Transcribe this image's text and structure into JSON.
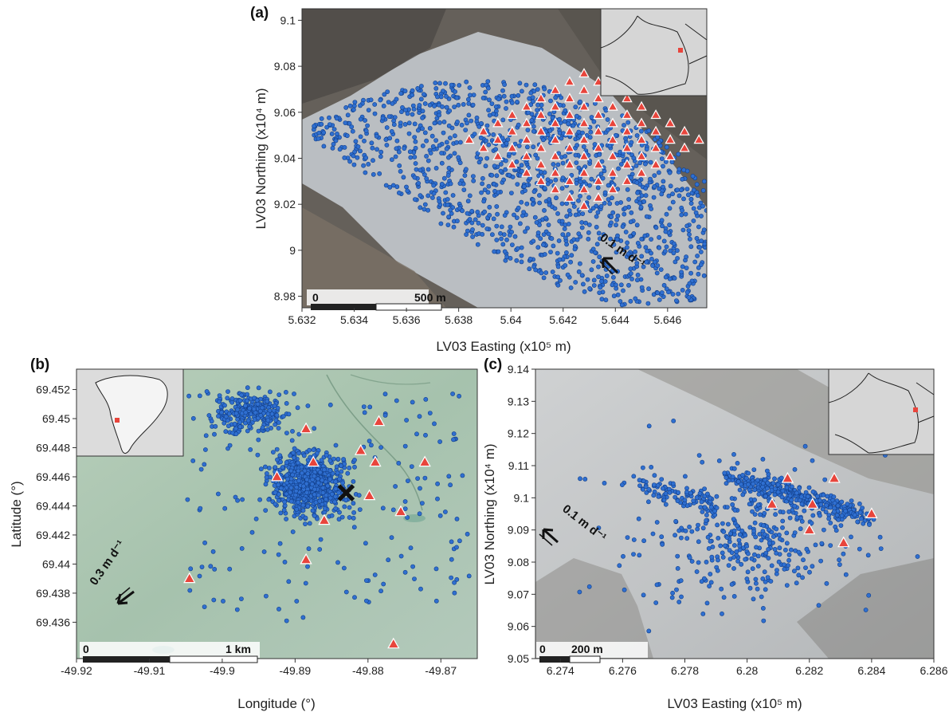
{
  "colors": {
    "point": "#2f6fd0",
    "point_stroke": "#123f8a",
    "station": "#e8453c",
    "station_stroke": "#ffffff",
    "bg_a_rock": "#5f5a52",
    "bg_a_ice": "#b9bdc2",
    "bg_b": "#a9c4b2",
    "bg_c": "#bdc0c2",
    "inset_bg": "#d9d9d9"
  },
  "chart_data": [
    {
      "panel": "(a)",
      "type": "scatter",
      "background": "satellite image of glacier",
      "xlabel": "LV03 Easting (x10⁵ m)",
      "ylabel": "LV03 Northing (x10⁴ m)",
      "xlim": [
        5.632,
        5.6475
      ],
      "ylim": [
        8.975,
        9.105
      ],
      "xticks": [
        "5.632",
        "5.634",
        "5.636",
        "5.638",
        "5.64",
        "5.642",
        "5.644",
        "5.646"
      ],
      "yticks": [
        "8.98",
        "9",
        "9.02",
        "9.04",
        "9.06",
        "9.08",
        "9.1"
      ],
      "scalebar": {
        "left": "0",
        "right": "500 m"
      },
      "velocity_label": "0.1 m d⁻¹",
      "inset": "map of France with location marker",
      "series": [
        {
          "kind": "icequakes",
          "cloud_polygon": [
            [
              5.6322,
              9.058
            ],
            [
              5.6335,
              9.064
            ],
            [
              5.6352,
              9.069
            ],
            [
              5.6372,
              9.073
            ],
            [
              5.639,
              9.074
            ],
            [
              5.641,
              9.072
            ],
            [
              5.6428,
              9.066
            ],
            [
              5.6445,
              9.058
            ],
            [
              5.6462,
              9.045
            ],
            [
              5.6475,
              9.03
            ],
            [
              5.6475,
              8.99
            ],
            [
              5.647,
              8.978
            ],
            [
              5.644,
              8.976
            ],
            [
              5.642,
              8.983
            ],
            [
              5.6398,
              8.995
            ],
            [
              5.6375,
              9.01
            ],
            [
              5.6358,
              9.023
            ],
            [
              5.634,
              9.037
            ],
            [
              5.6325,
              9.047
            ]
          ],
          "n_points": 1400
        },
        {
          "kind": "stations",
          "grid_origin": [
            5.6384,
            9.048
          ],
          "row_step": [
            0.00055,
            -0.0036
          ],
          "col_step": [
            0.00055,
            0.0036
          ],
          "rows": 9,
          "cols": 9
        }
      ]
    },
    {
      "panel": "(b)",
      "type": "scatter",
      "background": "satellite image of ice sheet",
      "xlabel": "Longitude (°)",
      "ylabel": "Latitude (°)",
      "xlim": [
        -49.92,
        -49.865
      ],
      "ylim": [
        69.4335,
        69.4534
      ],
      "xticks": [
        "-49.92",
        "-49.91",
        "-49.9",
        "-49.89",
        "-49.88",
        "-49.87"
      ],
      "yticks": [
        "69.436",
        "69.438",
        "69.44",
        "69.442",
        "69.444",
        "69.446",
        "69.448",
        "69.45",
        "69.452"
      ],
      "scalebar": {
        "left": "0",
        "right": "1 km"
      },
      "velocity_label": "0.3 m d⁻¹",
      "inset": "map of Greenland with location marker",
      "marker_x": [
        -49.883,
        69.4449
      ],
      "series": [
        {
          "kind": "icequakes",
          "cluster_main": {
            "center": [
              -49.888,
              69.4455
            ],
            "spread": [
              0.0038,
              0.0015
            ],
            "n": 700
          },
          "cluster_north": {
            "center": [
              -49.896,
              69.4505
            ],
            "spread": [
              0.0035,
              0.001
            ],
            "n": 250
          },
          "scattered": {
            "xlim": [
              -49.905,
              -49.866
            ],
            "ylim": [
              69.436,
              69.452
            ],
            "n": 180
          }
        },
        {
          "kind": "stations",
          "points": [
            [
              -49.8765,
              69.4345
            ],
            [
              -49.9045,
              69.439
            ],
            [
              -49.8885,
              69.4403
            ],
            [
              -49.886,
              69.443
            ],
            [
              -49.8755,
              69.4436
            ],
            [
              -49.8798,
              69.4447
            ],
            [
              -49.8925,
              69.446
            ],
            [
              -49.8875,
              69.447
            ],
            [
              -49.881,
              69.4478
            ],
            [
              -49.8885,
              69.4493
            ],
            [
              -49.879,
              69.447
            ],
            [
              -49.8722,
              69.447
            ],
            [
              -49.8785,
              69.4498
            ]
          ]
        }
      ]
    },
    {
      "panel": "(c)",
      "type": "scatter",
      "background": "satellite image of glacier",
      "xlabel": "LV03 Easting (x10⁵ m)",
      "ylabel": "LV03 Northing (x10⁴ m)",
      "xlim": [
        6.2732,
        6.286
      ],
      "ylim": [
        9.05,
        9.14
      ],
      "xticks": [
        "6.274",
        "6.276",
        "6.278",
        "6.28",
        "6.282",
        "6.284",
        "6.286"
      ],
      "yticks": [
        "9.05",
        "9.06",
        "9.07",
        "9.08",
        "9.09",
        "9.1",
        "9.11",
        "9.12",
        "9.13",
        "9.14"
      ],
      "scalebar": {
        "left": "0",
        "right": "200 m"
      },
      "velocity_label": "0.1 m d⁻¹",
      "inset": "map of France with location marker",
      "series": [
        {
          "kind": "icequakes",
          "band": {
            "from": [
              6.2795,
              9.107
            ],
            "to": [
              6.2838,
              9.094
            ],
            "width": 0.0022,
            "n": 320
          },
          "spread": {
            "center": [
              6.28,
              9.088
            ],
            "spread": [
              0.0022,
              0.014
            ],
            "n": 330
          },
          "left_arm": {
            "from": [
              6.2765,
              9.104
            ],
            "to": [
              6.2792,
              9.098
            ],
            "n": 90
          },
          "scattered": {
            "xlim": [
              6.2745,
              6.2855
            ],
            "ylim": [
              9.058,
              9.128
            ],
            "n": 60
          }
        },
        {
          "kind": "stations",
          "points": [
            [
              6.2808,
              9.098
            ],
            [
              6.2813,
              9.106
            ],
            [
              6.2821,
              9.098
            ],
            [
              6.282,
              9.09
            ],
            [
              6.2828,
              9.106
            ],
            [
              6.2831,
              9.086
            ],
            [
              6.284,
              9.095
            ]
          ]
        }
      ]
    }
  ]
}
